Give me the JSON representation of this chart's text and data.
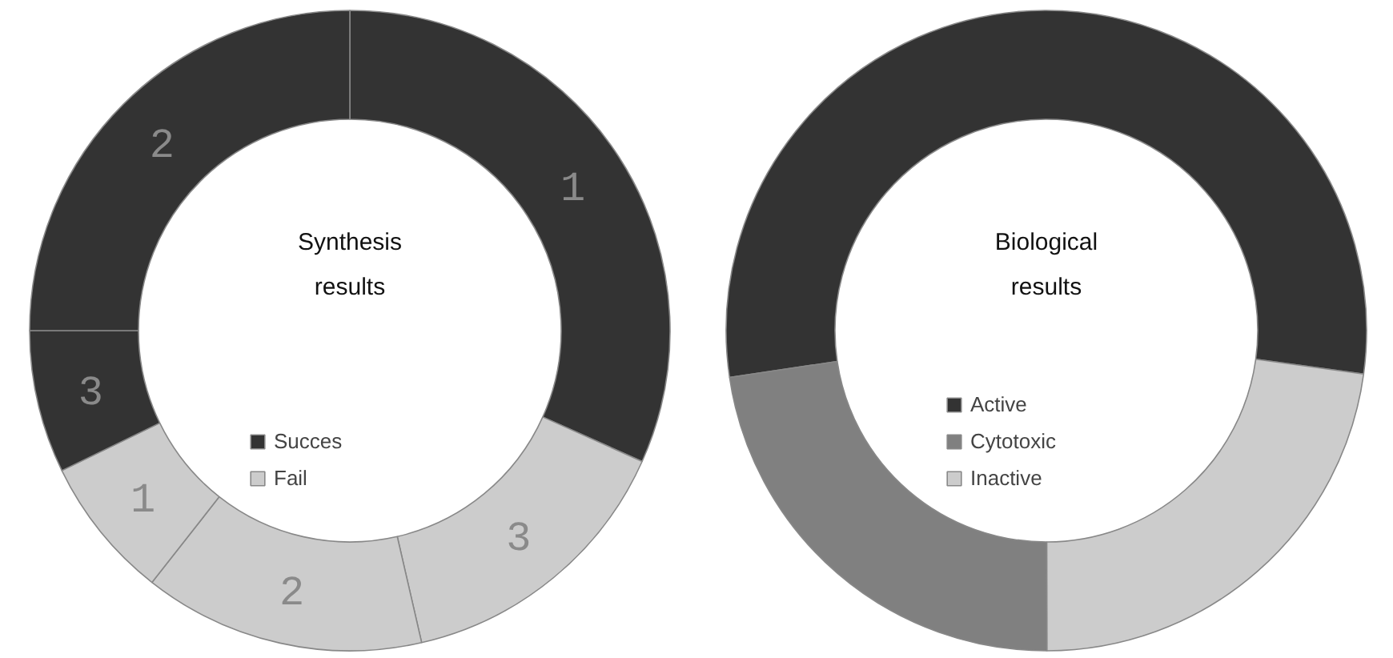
{
  "chart_data": [
    {
      "type": "donut",
      "title": "Synthesis results",
      "categories": [
        "1",
        "3",
        "2",
        "1",
        "3",
        "2"
      ],
      "values": [
        31.7,
        14.7,
        14.2,
        7.2,
        7.2,
        25.0
      ],
      "colors": [
        "#333333",
        "#cccccc",
        "#cccccc",
        "#cccccc",
        "#333333",
        "#333333"
      ],
      "annotations": [
        "Succes",
        "Fail"
      ]
    },
    {
      "type": "donut",
      "title": "Biological results",
      "categories": [
        "Active",
        "Cytotoxic",
        "Inactive"
      ],
      "values": [
        54.5,
        22.7,
        22.8
      ],
      "colors": [
        "#333333",
        "#808080",
        "#cccccc"
      ],
      "legend": "center"
    }
  ]
}
